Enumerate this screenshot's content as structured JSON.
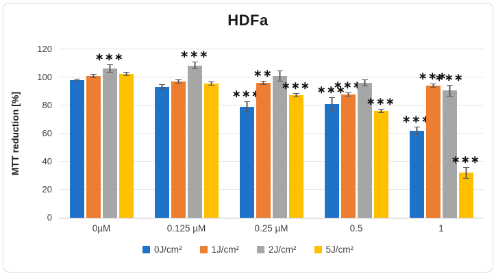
{
  "chart_data": {
    "type": "bar",
    "title": "HDFa",
    "ylabel": "MTT reduction [%]",
    "ylim": [
      0,
      120
    ],
    "ytick_step": 20,
    "grid": true,
    "legend_position": "bottom",
    "categories": [
      "0µM",
      "0.125 µM",
      "0.25 µM",
      "0.5",
      "1"
    ],
    "series": [
      {
        "name": "0J/cm²",
        "color": "#1e73c8",
        "values": [
          98,
          93,
          79,
          81,
          62
        ],
        "errors": [
          1,
          2,
          4,
          5,
          3
        ],
        "stars": [
          "",
          "",
          "***",
          "***",
          "***"
        ]
      },
      {
        "name": "1J/cm²",
        "color": "#ed7d31",
        "values": [
          101,
          97,
          96,
          88,
          94
        ],
        "errors": [
          1.5,
          1.5,
          1.5,
          1.5,
          1.5
        ],
        "stars": [
          "",
          "",
          "**",
          "***",
          "***"
        ]
      },
      {
        "name": "2J/cm²",
        "color": "#a6a6a6",
        "values": [
          106.5,
          108.5,
          101,
          96,
          90.5
        ],
        "errors": [
          3,
          2.5,
          4,
          2.5,
          4
        ],
        "stars": [
          "***",
          "***",
          "",
          "",
          "***"
        ]
      },
      {
        "name": "5J/cm²",
        "color": "#ffc000",
        "values": [
          102.5,
          95.5,
          87.5,
          76,
          32
        ],
        "errors": [
          1.5,
          1.5,
          1.5,
          1.5,
          4
        ],
        "stars": [
          "",
          "",
          "***",
          "***",
          "***"
        ]
      }
    ]
  }
}
